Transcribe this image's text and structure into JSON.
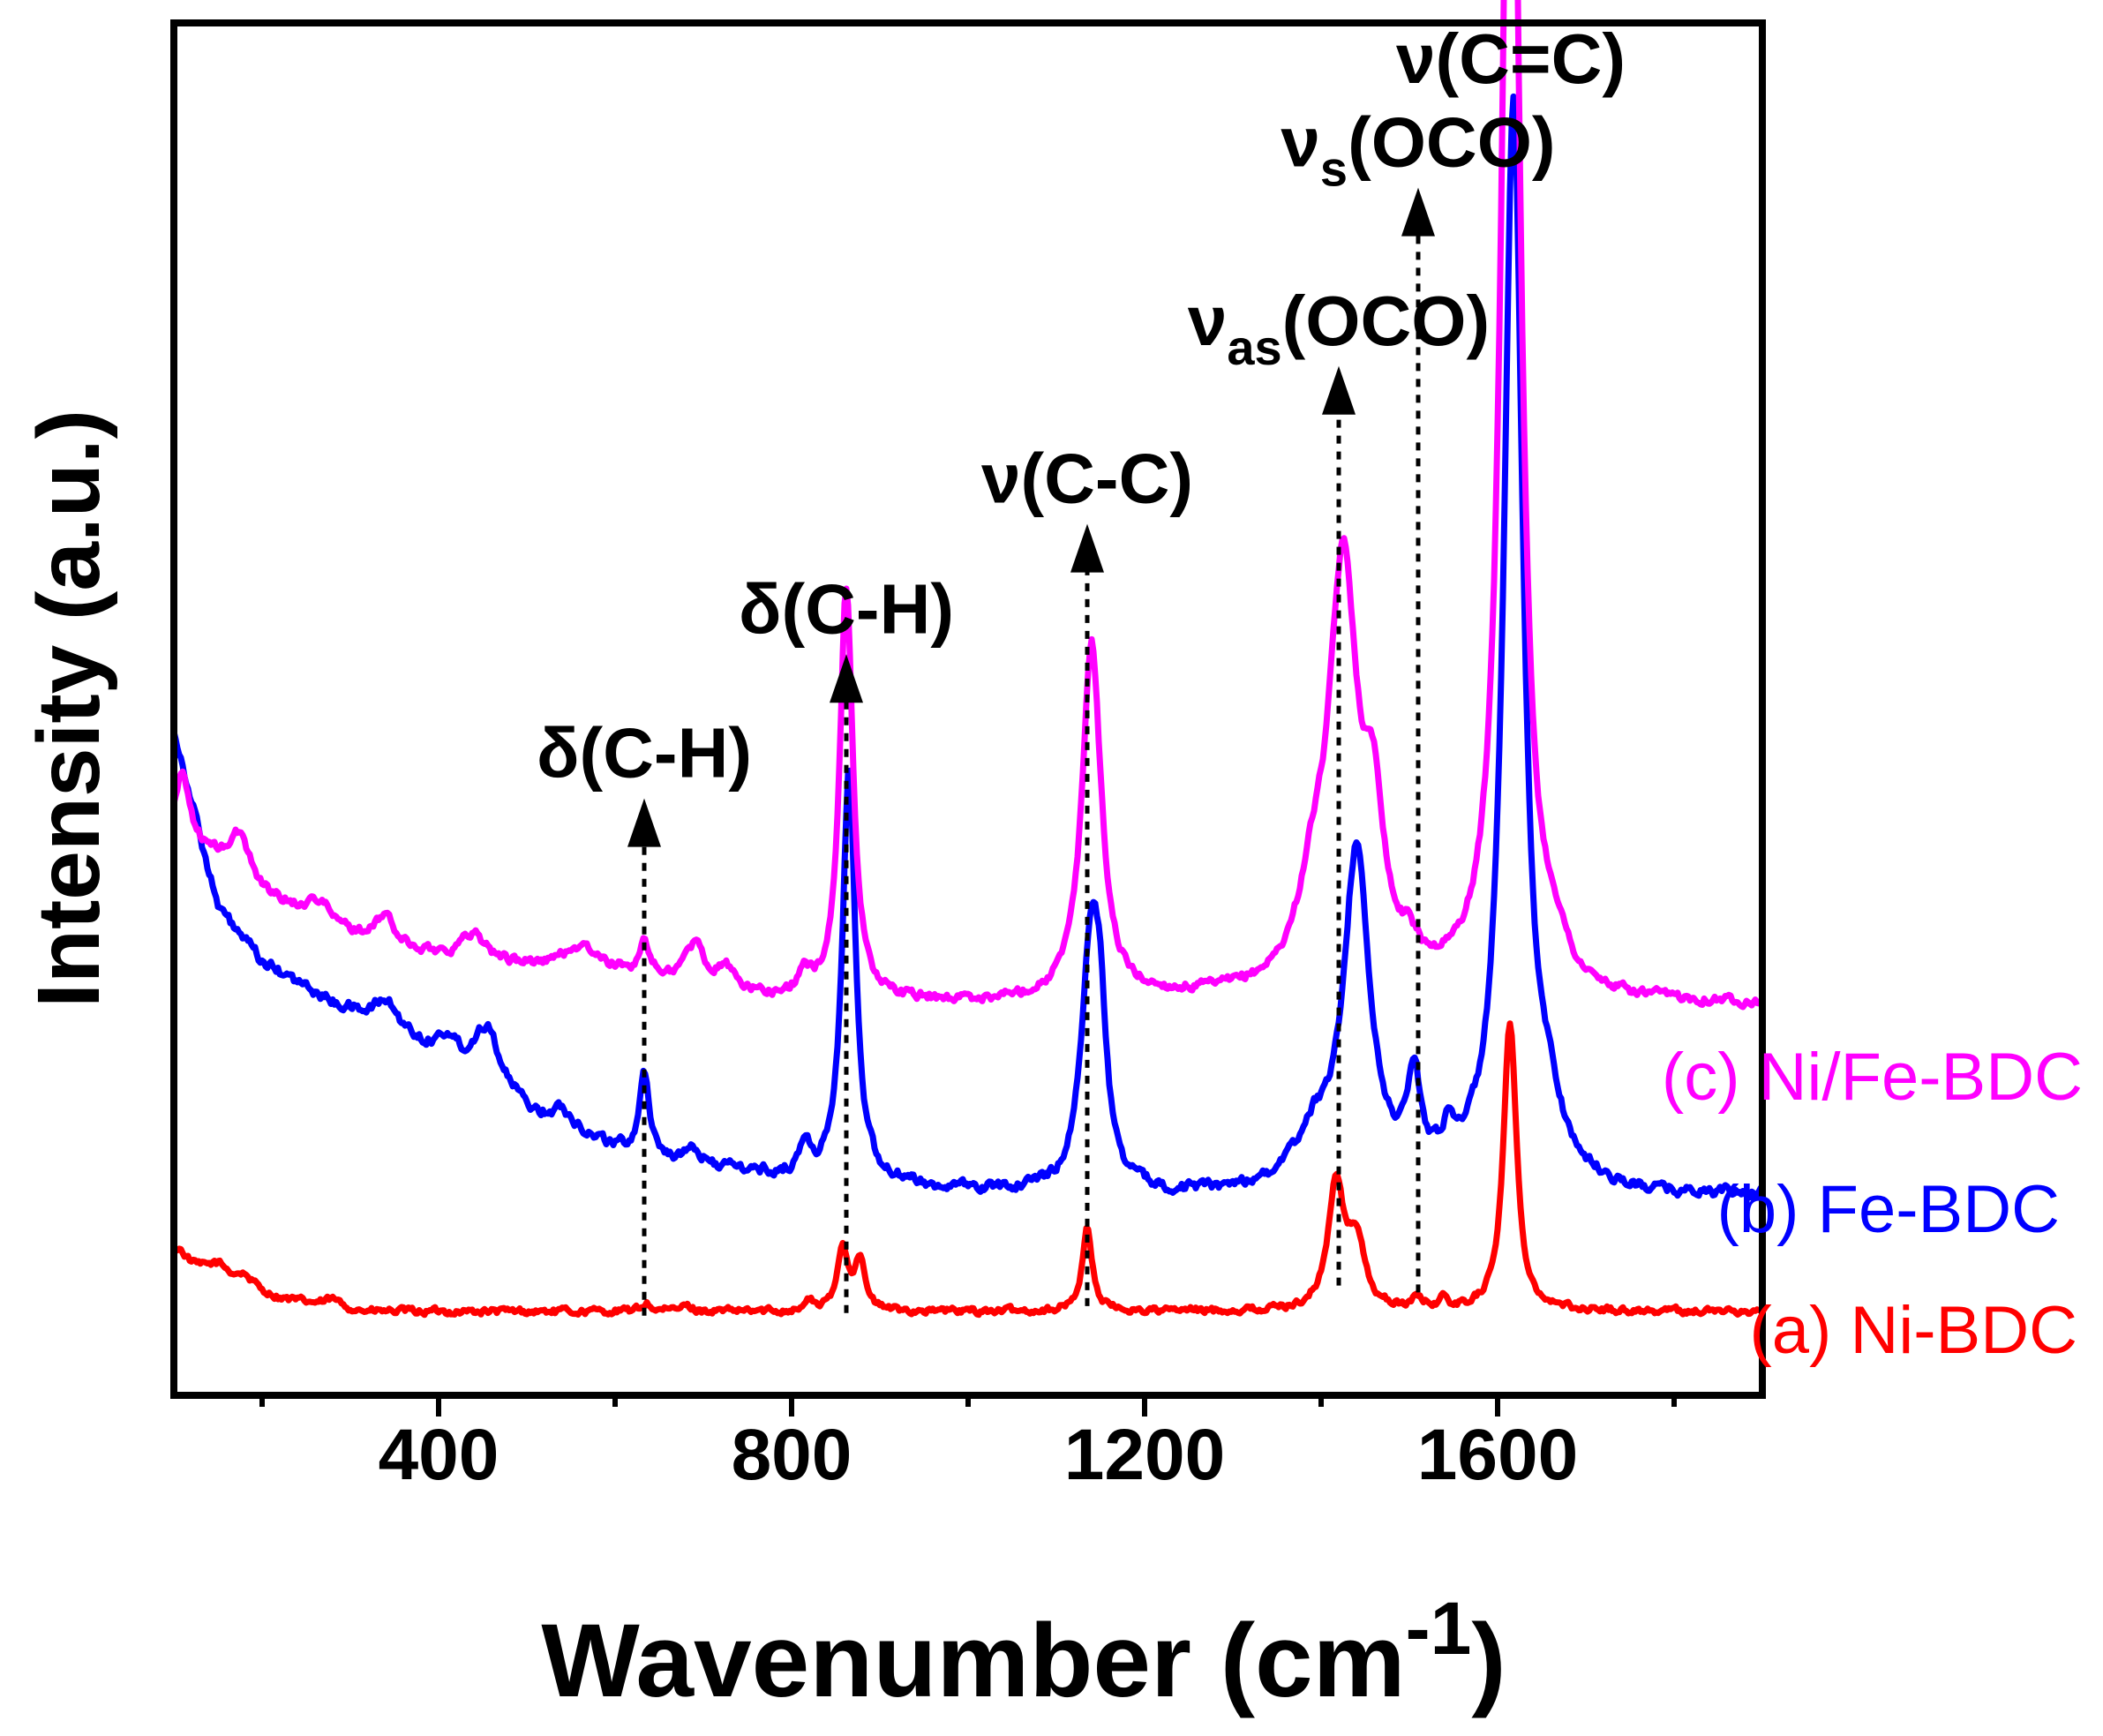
{
  "chart_data": {
    "type": "line",
    "title": "",
    "xlabel": "Wavenumber (cm",
    "xlabel_sup": "-1",
    "xlabel_close": ")",
    "ylabel": "Intensity (a.u.)",
    "xlim": [
      100,
      1900
    ],
    "ylim": [
      0,
      100
    ],
    "xticks": [
      400,
      800,
      1200,
      1600
    ],
    "minor_xticks": [
      200,
      600,
      1000,
      1400,
      1800
    ],
    "yticks_visible": false,
    "grid": false,
    "series": [
      {
        "name": "Ni-BDC",
        "label": "(a) Ni-BDC",
        "color": "#ff0000",
        "baseline": 5.5,
        "noise": 0.45,
        "slope": [
          [
            100,
            4.0
          ],
          [
            220,
            1.5
          ],
          [
            320,
            0.6
          ]
        ],
        "peaks": [
          {
            "x": 105,
            "h": 1.2,
            "w": 12
          },
          {
            "x": 150,
            "h": 1.0,
            "w": 15
          },
          {
            "x": 180,
            "h": 0.8,
            "w": 12
          },
          {
            "x": 280,
            "h": 0.5,
            "w": 10
          },
          {
            "x": 635,
            "h": 0.6,
            "w": 6
          },
          {
            "x": 680,
            "h": 0.4,
            "w": 8
          },
          {
            "x": 820,
            "h": 0.7,
            "w": 6
          },
          {
            "x": 858,
            "h": 4.6,
            "w": 7
          },
          {
            "x": 877,
            "h": 3.8,
            "w": 7
          },
          {
            "x": 1135,
            "h": 6.0,
            "w": 7
          },
          {
            "x": 1417,
            "h": 9.0,
            "w": 11
          },
          {
            "x": 1440,
            "h": 4.8,
            "w": 11
          },
          {
            "x": 1510,
            "h": 0.8,
            "w": 7
          },
          {
            "x": 1538,
            "h": 0.6,
            "w": 6
          },
          {
            "x": 1614,
            "h": 21.0,
            "w": 9
          }
        ]
      },
      {
        "name": "Fe-BDC",
        "label": "(b) Fe-BDC",
        "color": "#0000ff",
        "baseline": 14.5,
        "noise": 0.7,
        "slope": [
          [
            100,
            34.0
          ],
          [
            150,
            21.0
          ],
          [
            200,
            17.0
          ],
          [
            280,
            14.0
          ],
          [
            350,
            12.0
          ],
          [
            450,
            8.0
          ],
          [
            520,
            5.0
          ],
          [
            620,
            3.0
          ],
          [
            800,
            1.2
          ],
          [
            1000,
            0.3
          ],
          [
            1250,
            0.0
          ],
          [
            1650,
            1.0
          ],
          [
            1750,
            0.0
          ]
        ],
        "peaks": [
          {
            "x": 340,
            "h": 1.8,
            "w": 16
          },
          {
            "x": 410,
            "h": 1.6,
            "w": 14
          },
          {
            "x": 455,
            "h": 4.5,
            "w": 18
          },
          {
            "x": 540,
            "h": 1.5,
            "w": 20
          },
          {
            "x": 633,
            "h": 6.0,
            "w": 7
          },
          {
            "x": 690,
            "h": 0.8,
            "w": 10
          },
          {
            "x": 815,
            "h": 2.2,
            "w": 8
          },
          {
            "x": 865,
            "h": 30.0,
            "w": 9
          },
          {
            "x": 1140,
            "h": 19.0,
            "w": 13
          },
          {
            "x": 1150,
            "h": 6.0,
            "w": 8
          },
          {
            "x": 1390,
            "h": 3.2,
            "w": 22
          },
          {
            "x": 1440,
            "h": 24.0,
            "w": 18
          },
          {
            "x": 1505,
            "h": 6.5,
            "w": 9
          },
          {
            "x": 1545,
            "h": 2.0,
            "w": 10
          },
          {
            "x": 1618,
            "h": 78.0,
            "w": 13
          },
          {
            "x": 1660,
            "h": 3.0,
            "w": 15
          }
        ]
      },
      {
        "name": "Ni/Fe-BDC",
        "label": "(c) Ni/Fe-BDC",
        "color": "#ff00ff",
        "baseline": 28.5,
        "noise": 0.6,
        "slope": [
          [
            100,
            12.0
          ],
          [
            160,
            10.0
          ],
          [
            200,
            8.0
          ],
          [
            280,
            5.5
          ],
          [
            350,
            4.0
          ],
          [
            450,
            3.0
          ],
          [
            520,
            2.5
          ],
          [
            620,
            2.0
          ],
          [
            780,
            0.3
          ],
          [
            1000,
            0.0
          ],
          [
            1650,
            0.8
          ],
          [
            1700,
            0.0
          ]
        ],
        "peaks": [
          {
            "x": 110,
            "h": 5.0,
            "w": 10
          },
          {
            "x": 175,
            "h": 3.0,
            "w": 14
          },
          {
            "x": 265,
            "h": 1.6,
            "w": 14
          },
          {
            "x": 340,
            "h": 2.2,
            "w": 12
          },
          {
            "x": 440,
            "h": 2.0,
            "w": 16
          },
          {
            "x": 560,
            "h": 1.8,
            "w": 25
          },
          {
            "x": 633,
            "h": 2.6,
            "w": 6
          },
          {
            "x": 690,
            "h": 2.8,
            "w": 14
          },
          {
            "x": 725,
            "h": 1.6,
            "w": 10
          },
          {
            "x": 815,
            "h": 1.6,
            "w": 8
          },
          {
            "x": 862,
            "h": 30.0,
            "w": 9
          },
          {
            "x": 1140,
            "h": 26.0,
            "w": 13
          },
          {
            "x": 1390,
            "h": 5.0,
            "w": 20
          },
          {
            "x": 1425,
            "h": 30.0,
            "w": 20
          },
          {
            "x": 1460,
            "h": 10.0,
            "w": 14
          },
          {
            "x": 1500,
            "h": 1.8,
            "w": 8
          },
          {
            "x": 1615,
            "h": 104.0,
            "w": 12
          },
          {
            "x": 1665,
            "h": 2.0,
            "w": 15
          }
        ]
      }
    ],
    "annotations": [
      {
        "label_main": "δ(C-H)",
        "sub": "",
        "suffix": "",
        "x": 633,
        "y_start": 5.8,
        "y_arrow": 43.5
      },
      {
        "label_main": "δ(C-H)",
        "sub": "",
        "suffix": "",
        "x": 862,
        "y_start": 6.0,
        "y_arrow": 54.0
      },
      {
        "label_main": "ν(C-C)",
        "sub": "",
        "suffix": "",
        "x": 1135,
        "y_start": 6.5,
        "y_arrow": 63.5
      },
      {
        "label_main": "ν",
        "sub": "as",
        "suffix": "(OCO)",
        "x": 1420,
        "y_start": 8.0,
        "y_arrow": 75.0
      },
      {
        "label_main": "ν",
        "sub": "s",
        "suffix": "(OCO)",
        "x": 1510,
        "y_start": 7.5,
        "y_arrow": 88.0
      },
      {
        "label_main": "ν(C=C)",
        "sub": "",
        "suffix": "",
        "x": 1615,
        "y_start": null,
        "y_arrow": null
      }
    ]
  }
}
